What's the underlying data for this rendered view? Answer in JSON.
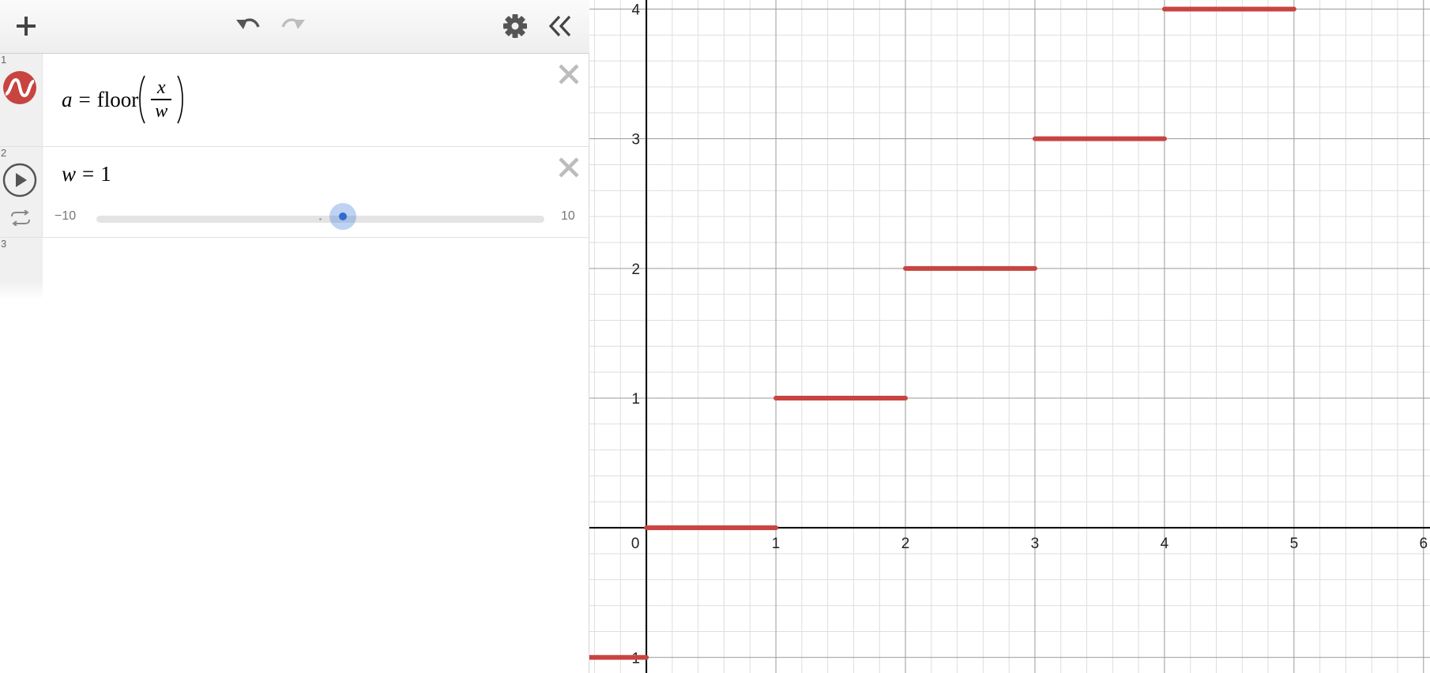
{
  "toolbar": {
    "add_icon": "plus-icon",
    "undo_icon": "undo-icon",
    "redo_icon": "redo-icon",
    "settings_icon": "gear-icon",
    "collapse_icon": "double-chevron-left-icon"
  },
  "expressions": [
    {
      "number": "1",
      "icon": "function-color-icon",
      "lhs": "a",
      "equals": "=",
      "func": "floor",
      "numerator": "x",
      "denominator": "w"
    },
    {
      "number": "2",
      "icon": "play-icon",
      "variable": "w",
      "equals": "=",
      "value": "1",
      "slider": {
        "min_label": "−10",
        "max_label": "10",
        "min": -10,
        "max": 10,
        "value": 0.99
      }
    },
    {
      "number": "3"
    }
  ],
  "colors": {
    "curve": "#c74440",
    "slider_accent": "#2f6ad0",
    "axis": "#000000",
    "major_grid": "#9a9a9a",
    "minor_grid": "#dedede"
  },
  "graph": {
    "x_ticks": [
      "0",
      "1",
      "2",
      "3",
      "4",
      "5",
      "6"
    ],
    "y_ticks": [
      "1",
      "2",
      "3",
      "4",
      "-1"
    ],
    "x_range": [
      -0.44,
      6.05
    ],
    "y_range": [
      -1.12,
      4.07
    ]
  },
  "chart_data": {
    "type": "line",
    "title": "a = floor(x / w)",
    "xlabel": "",
    "ylabel": "",
    "xlim": [
      -0.44,
      6.05
    ],
    "ylim": [
      -1.12,
      4.07
    ],
    "grid": true,
    "series": [
      {
        "name": "a = floor(x/w)",
        "segments": [
          {
            "x": [
              -1,
              0
            ],
            "y": -1
          },
          {
            "x": [
              0,
              1
            ],
            "y": 0
          },
          {
            "x": [
              1,
              2
            ],
            "y": 1
          },
          {
            "x": [
              2,
              3
            ],
            "y": 2
          },
          {
            "x": [
              3,
              4
            ],
            "y": 3
          },
          {
            "x": [
              4,
              5
            ],
            "y": 4
          }
        ]
      }
    ]
  }
}
